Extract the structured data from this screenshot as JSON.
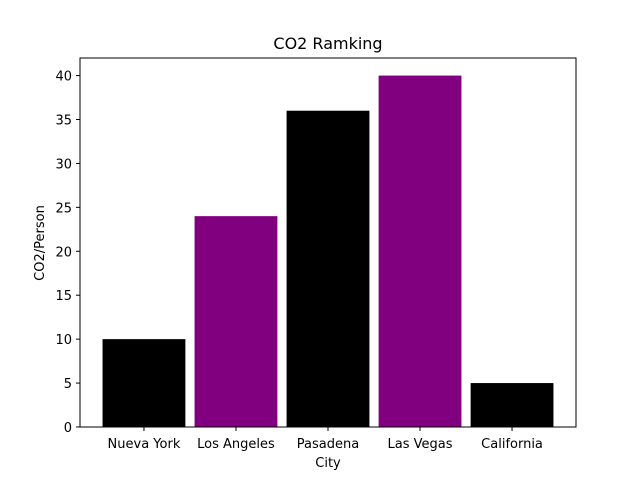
{
  "chart_data": {
    "type": "bar",
    "title": "CO2 Ramking",
    "xlabel": "City",
    "ylabel": "CO2/Person",
    "categories": [
      "Nueva York",
      "Los Angeles",
      "Pasadena",
      "Las Vegas",
      "California"
    ],
    "values": [
      10,
      24,
      36,
      40,
      5
    ],
    "bar_colors": [
      "#000000",
      "#800080",
      "#000000",
      "#800080",
      "#000000"
    ],
    "ylim": [
      0,
      42
    ],
    "yticks": [
      0,
      5,
      10,
      15,
      20,
      25,
      30,
      35,
      40
    ],
    "grid": false,
    "legend": "none"
  }
}
